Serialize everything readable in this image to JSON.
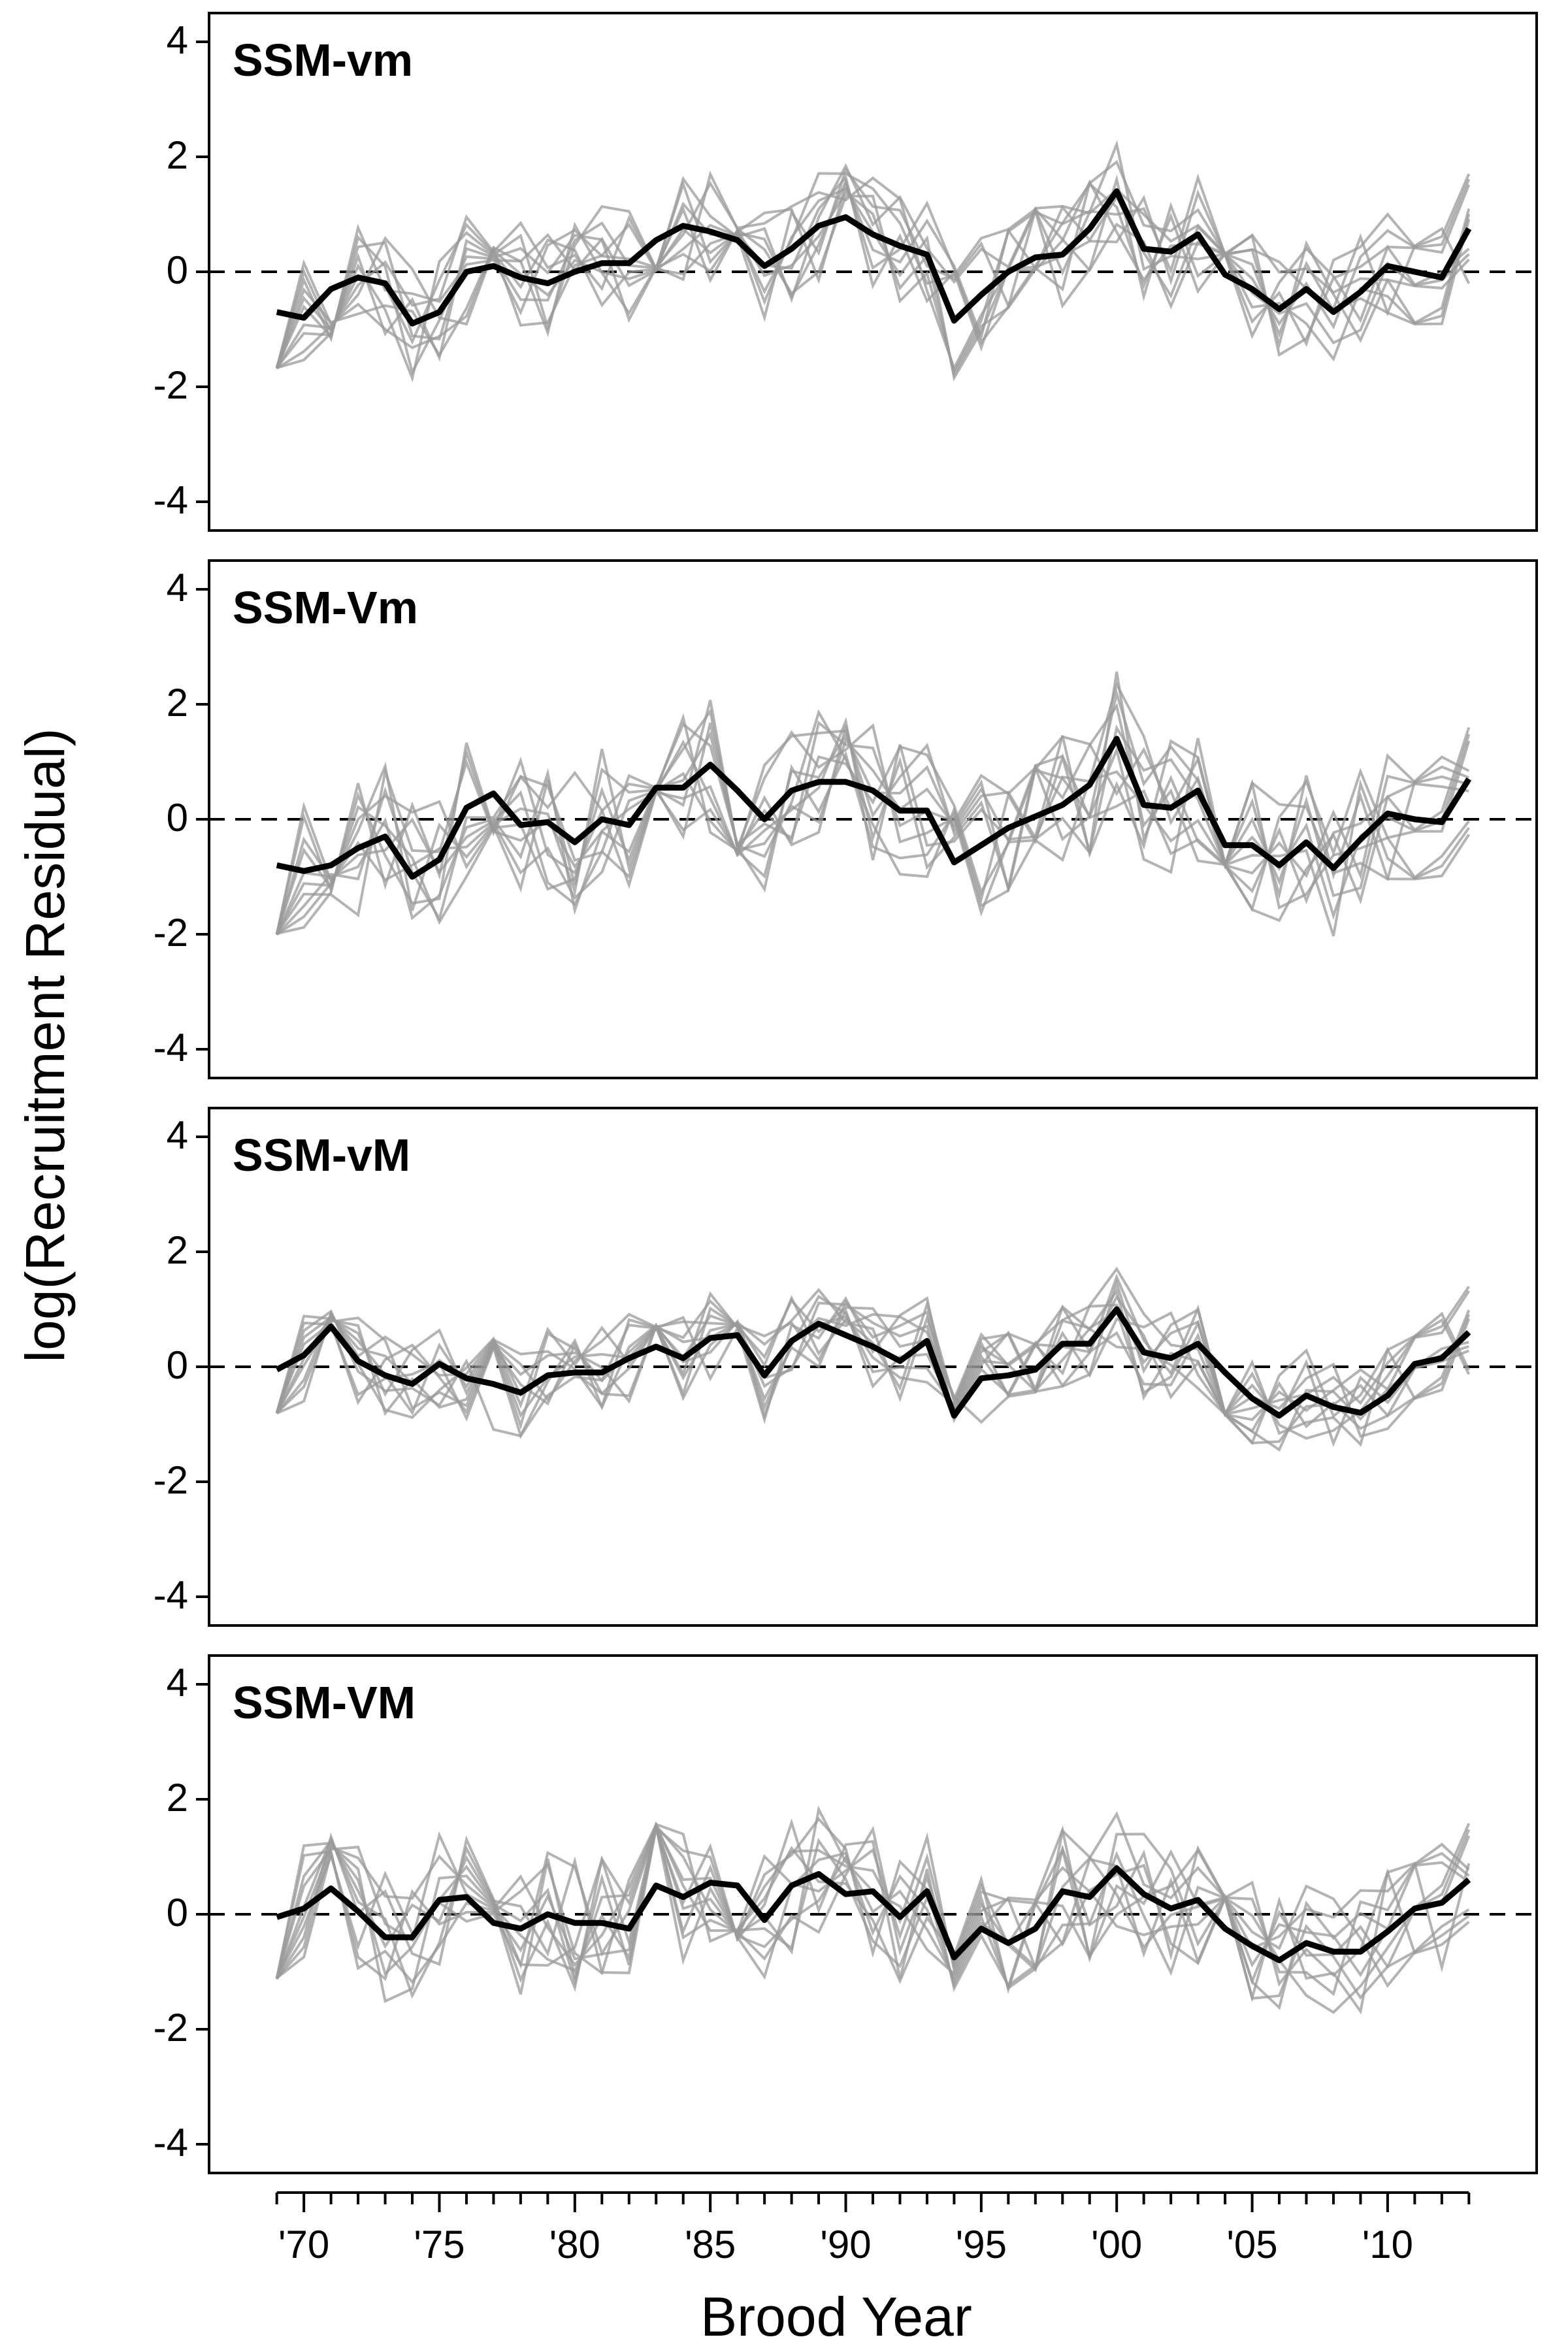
{
  "chart_data": {
    "type": "line",
    "ylabel": "log(Recruitment Residual)",
    "xlabel": "Brood Year",
    "ylim": [
      -4.5,
      4.5
    ],
    "y_ticks": [
      "4",
      "2",
      "0",
      "-2",
      "-4"
    ],
    "y_tick_values": [
      4,
      2,
      0,
      -2,
      -4
    ],
    "x_ticks": [
      "'70",
      "'75",
      "'80",
      "'85",
      "'90",
      "'95",
      "'00",
      "'05",
      "'10"
    ],
    "x_tick_values": [
      1970,
      1975,
      1980,
      1985,
      1990,
      1995,
      2000,
      2005,
      2010
    ],
    "x_minor_range": [
      1969,
      2013
    ],
    "zero_line": "dashed",
    "colors": {
      "mean": "#000000",
      "populations": "#9a9a9a",
      "frame": "#000000"
    },
    "panels": [
      {
        "label": "SSM-vm",
        "mean": {
          "x": [
            1969,
            1970,
            1971,
            1972,
            1973,
            1974,
            1975,
            1976,
            1977,
            1978,
            1979,
            1980,
            1981,
            1982,
            1983,
            1984,
            1985,
            1986,
            1987,
            1988,
            1989,
            1990,
            1991,
            1992,
            1993,
            1994,
            1995,
            1996,
            1997,
            1998,
            1999,
            2000,
            2001,
            2002,
            2003,
            2004,
            2005,
            2006,
            2007,
            2008,
            2009,
            2010,
            2011,
            2012,
            2013
          ],
          "y": [
            -0.7,
            -0.8,
            -0.3,
            -0.1,
            -0.2,
            -0.9,
            -0.7,
            0.0,
            0.1,
            -0.1,
            -0.2,
            0.0,
            0.15,
            0.15,
            0.55,
            0.8,
            0.7,
            0.55,
            0.1,
            0.4,
            0.8,
            0.95,
            0.65,
            0.45,
            0.3,
            -0.85,
            -0.4,
            0.0,
            0.25,
            0.3,
            0.75,
            1.4,
            0.4,
            0.35,
            0.65,
            -0.05,
            -0.3,
            -0.65,
            -0.3,
            -0.7,
            -0.35,
            0.1,
            0.0,
            -0.1,
            0.75
          ]
        }
      },
      {
        "label": "SSM-Vm",
        "mean": {
          "x": [
            1969,
            1970,
            1971,
            1972,
            1973,
            1974,
            1975,
            1976,
            1977,
            1978,
            1979,
            1980,
            1981,
            1982,
            1983,
            1984,
            1985,
            1986,
            1987,
            1988,
            1989,
            1990,
            1991,
            1992,
            1993,
            1994,
            1995,
            1996,
            1997,
            1998,
            1999,
            2000,
            2001,
            2002,
            2003,
            2004,
            2005,
            2006,
            2007,
            2008,
            2009,
            2010,
            2011,
            2012,
            2013
          ],
          "y": [
            -0.8,
            -0.9,
            -0.8,
            -0.5,
            -0.3,
            -1.0,
            -0.7,
            0.2,
            0.45,
            -0.1,
            -0.05,
            -0.4,
            0.0,
            -0.1,
            0.55,
            0.55,
            0.95,
            0.5,
            0.0,
            0.5,
            0.65,
            0.65,
            0.5,
            0.15,
            0.15,
            -0.75,
            -0.45,
            -0.15,
            0.05,
            0.25,
            0.6,
            1.4,
            0.25,
            0.2,
            0.5,
            -0.45,
            -0.45,
            -0.8,
            -0.4,
            -0.85,
            -0.35,
            0.1,
            0.0,
            -0.05,
            0.7
          ]
        }
      },
      {
        "label": "SSM-vM",
        "mean": {
          "x": [
            1969,
            1970,
            1971,
            1972,
            1973,
            1974,
            1975,
            1976,
            1977,
            1978,
            1979,
            1980,
            1981,
            1982,
            1983,
            1984,
            1985,
            1986,
            1987,
            1988,
            1989,
            1990,
            1991,
            1992,
            1993,
            1994,
            1995,
            1996,
            1997,
            1998,
            1999,
            2000,
            2001,
            2002,
            2003,
            2004,
            2005,
            2006,
            2007,
            2008,
            2009,
            2010,
            2011,
            2012,
            2013
          ],
          "y": [
            -0.05,
            0.2,
            0.7,
            0.1,
            -0.15,
            -0.3,
            0.05,
            -0.2,
            -0.3,
            -0.45,
            -0.15,
            -0.1,
            -0.1,
            0.15,
            0.35,
            0.15,
            0.5,
            0.55,
            -0.15,
            0.45,
            0.75,
            0.55,
            0.35,
            0.1,
            0.45,
            -0.85,
            -0.2,
            -0.15,
            -0.05,
            0.4,
            0.4,
            1.0,
            0.25,
            0.15,
            0.4,
            -0.1,
            -0.55,
            -0.85,
            -0.5,
            -0.7,
            -0.8,
            -0.5,
            0.05,
            0.15,
            0.6
          ]
        }
      },
      {
        "label": "SSM-VM",
        "mean": {
          "x": [
            1969,
            1970,
            1971,
            1972,
            1973,
            1974,
            1975,
            1976,
            1977,
            1978,
            1979,
            1980,
            1981,
            1982,
            1983,
            1984,
            1985,
            1986,
            1987,
            1988,
            1989,
            1990,
            1991,
            1992,
            1993,
            1994,
            1995,
            1996,
            1997,
            1998,
            1999,
            2000,
            2001,
            2002,
            2003,
            2004,
            2005,
            2006,
            2007,
            2008,
            2009,
            2010,
            2011,
            2012,
            2013
          ],
          "y": [
            -0.05,
            0.1,
            0.45,
            0.05,
            -0.4,
            -0.4,
            0.25,
            0.3,
            -0.15,
            -0.25,
            0.0,
            -0.15,
            -0.15,
            -0.25,
            0.5,
            0.3,
            0.55,
            0.5,
            -0.1,
            0.5,
            0.7,
            0.35,
            0.4,
            -0.05,
            0.4,
            -0.75,
            -0.25,
            -0.5,
            -0.25,
            0.4,
            0.3,
            0.8,
            0.35,
            0.1,
            0.25,
            -0.25,
            -0.55,
            -0.8,
            -0.5,
            -0.65,
            -0.65,
            -0.3,
            0.1,
            0.2,
            0.6
          ]
        }
      }
    ],
    "population_series_count": 10,
    "population_amplitudes": [
      1.0,
      1.25,
      0.8,
      1.15
    ]
  }
}
